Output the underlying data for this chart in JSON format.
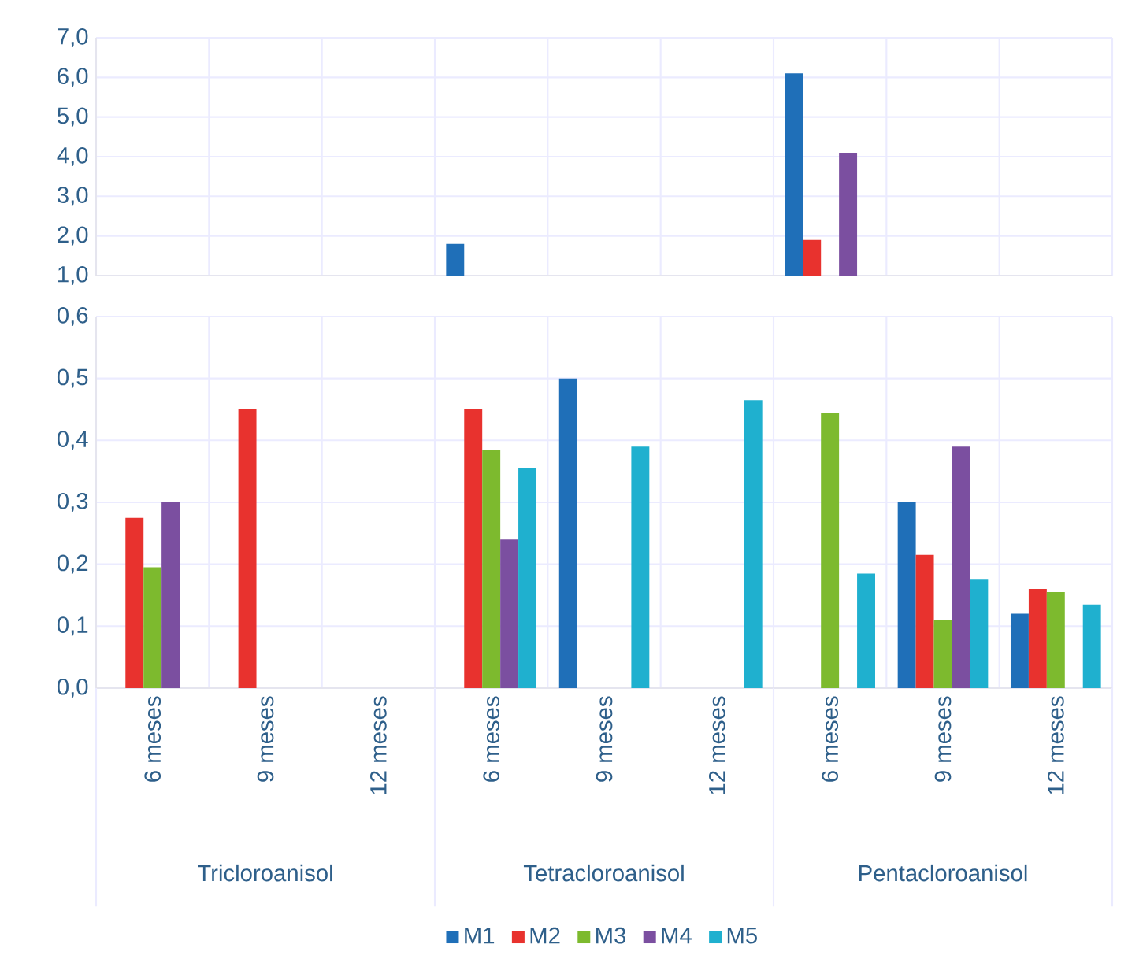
{
  "chart_data": [
    {
      "type": "bar",
      "categories": [
        null,
        null,
        null,
        null,
        null,
        null,
        null,
        null,
        null
      ],
      "series": [
        {
          "color": "#1f6fb8",
          "values": [
            null,
            null,
            null,
            1.8,
            null,
            null,
            6.1,
            null,
            null
          ]
        },
        {
          "color": "#e8322e",
          "values": [
            null,
            null,
            null,
            null,
            null,
            null,
            1.9,
            null,
            null
          ]
        },
        {
          "color": "#7dba2e",
          "values": [
            null,
            null,
            null,
            null,
            null,
            null,
            null,
            null,
            null
          ]
        },
        {
          "color": "#7b4fa0",
          "values": [
            null,
            null,
            null,
            null,
            null,
            null,
            4.1,
            null,
            null
          ]
        },
        {
          "color": "#1fb0cf",
          "values": [
            null,
            null,
            null,
            null,
            null,
            null,
            null,
            null,
            null
          ]
        }
      ],
      "ylim": [
        1,
        7
      ],
      "yticks": [
        {
          "value": 1,
          "label": "1,0"
        },
        {
          "value": 2,
          "label": "2,0"
        },
        {
          "value": 3,
          "label": "3,0"
        },
        {
          "value": 4,
          "label": "4,0"
        },
        {
          "value": 5,
          "label": "5,0"
        },
        {
          "value": 6,
          "label": "6,0"
        },
        {
          "value": 7,
          "label": "7,0"
        }
      ],
      "grid": true,
      "tick_labels": "y"
    },
    {
      "type": "bar",
      "categories": [
        "6 meses",
        "9 meses",
        "12 meses",
        "6 meses",
        "9 meses",
        "12 meses",
        "6 meses",
        "9 meses",
        "12 meses"
      ],
      "series": [
        {
          "name": "M1",
          "color": "#1f6fb8",
          "values": [
            null,
            null,
            null,
            null,
            0.5,
            null,
            null,
            0.3,
            0.12
          ]
        },
        {
          "name": "M2",
          "color": "#e8322e",
          "values": [
            0.275,
            0.45,
            null,
            0.45,
            null,
            null,
            null,
            0.215,
            0.16
          ]
        },
        {
          "name": "M3",
          "color": "#7dba2e",
          "values": [
            0.195,
            null,
            null,
            0.385,
            null,
            null,
            0.445,
            0.11,
            0.155
          ]
        },
        {
          "name": "M4",
          "color": "#7b4fa0",
          "values": [
            0.3,
            null,
            null,
            0.24,
            null,
            null,
            null,
            0.39,
            null
          ]
        },
        {
          "name": "M5",
          "color": "#1fb0cf",
          "values": [
            null,
            null,
            null,
            0.355,
            0.39,
            0.465,
            0.185,
            0.175,
            0.135
          ]
        }
      ],
      "ylim": [
        0,
        0.6
      ],
      "yticks": [
        {
          "value": 0,
          "label": "0,0"
        },
        {
          "value": 0.1,
          "label": "0,1"
        },
        {
          "value": 0.2,
          "label": "0,2"
        },
        {
          "value": 0.3,
          "label": "0,3"
        },
        {
          "value": 0.4,
          "label": "0,4"
        },
        {
          "value": 0.5,
          "label": "0,5"
        },
        {
          "value": 0.6,
          "label": "0,6"
        }
      ],
      "annotations": [
        "Tricloroanisol",
        "Tetracloroanisol",
        "Pentacloroanisol"
      ],
      "grid": true,
      "legend": "bottom"
    }
  ]
}
